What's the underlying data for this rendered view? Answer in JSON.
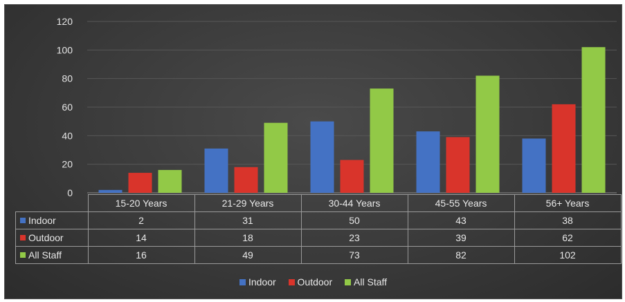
{
  "colors": {
    "indoor": "#4472c4",
    "outdoor": "#d9342b",
    "all_staff": "#92c947"
  },
  "chart_data": {
    "type": "bar",
    "title": "",
    "xlabel": "",
    "ylabel": "",
    "categories": [
      "15-20 Years",
      "21-29 Years",
      "30-44 Years",
      "45-55 Years",
      "56+ Years"
    ],
    "series": [
      {
        "name": "Indoor",
        "values": [
          2,
          31,
          50,
          43,
          38
        ]
      },
      {
        "name": "Outdoor",
        "values": [
          14,
          18,
          23,
          39,
          62
        ]
      },
      {
        "name": "All Staff",
        "values": [
          16,
          49,
          73,
          82,
          102
        ]
      }
    ],
    "ylim": [
      0,
      120
    ],
    "yticks": [
      "0",
      "20",
      "40",
      "60",
      "80",
      "100",
      "120"
    ],
    "grid": true,
    "legend_position": "bottom",
    "data_table": true
  }
}
